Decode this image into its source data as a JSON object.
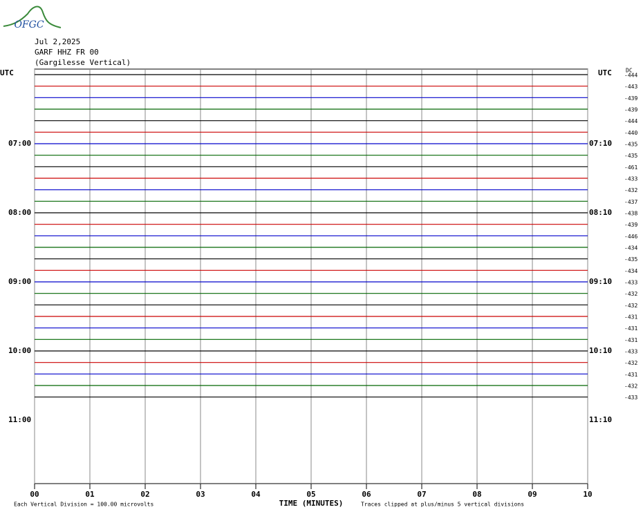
{
  "logo": "OFGC",
  "header": {
    "date": "Jul 2,2025",
    "station": "GARF HHZ FR 00",
    "location": "(Gargilesse Vertical)"
  },
  "chart_data": {
    "type": "helicorder",
    "left_axis_label": "UTC",
    "right_axis_label": "UTC",
    "dc_label": "DC",
    "hour_labels_left": [
      "07:00",
      "08:00",
      "09:00",
      "10:00",
      "11:00"
    ],
    "hour_labels_right": [
      "07:10",
      "08:10",
      "09:10",
      "10:10",
      "11:10"
    ],
    "x_label": "TIME (MINUTES)",
    "xlim": [
      0,
      10
    ],
    "xticks": [
      {
        "value": 0,
        "label": "00"
      },
      {
        "value": 1,
        "label": "01"
      },
      {
        "value": 2,
        "label": "02"
      },
      {
        "value": 3,
        "label": "03"
      },
      {
        "value": 4,
        "label": "04"
      },
      {
        "value": 5,
        "label": "05"
      },
      {
        "value": 6,
        "label": "06"
      },
      {
        "value": 7,
        "label": "07"
      },
      {
        "value": 8,
        "label": "08"
      },
      {
        "value": 9,
        "label": "09"
      },
      {
        "value": 10,
        "label": "10"
      }
    ],
    "grid": true,
    "colors": [
      "#000000",
      "#cc0000",
      "#0000cc",
      "#006600"
    ],
    "dc_values": [
      -444,
      -443,
      -439,
      -439,
      -444,
      -440,
      -435,
      -435,
      -461,
      -433,
      -432,
      -437,
      -438,
      -439,
      -446,
      -434,
      -435,
      -434,
      -433,
      -432,
      -432,
      -431,
      -431,
      -431,
      -433,
      -432,
      -431,
      -432,
      -433
    ],
    "footer_left": "Each Vertical Division =  100.00 microvolts",
    "footer_right": "Traces clipped at plus/minus 5 vertical divisions"
  }
}
